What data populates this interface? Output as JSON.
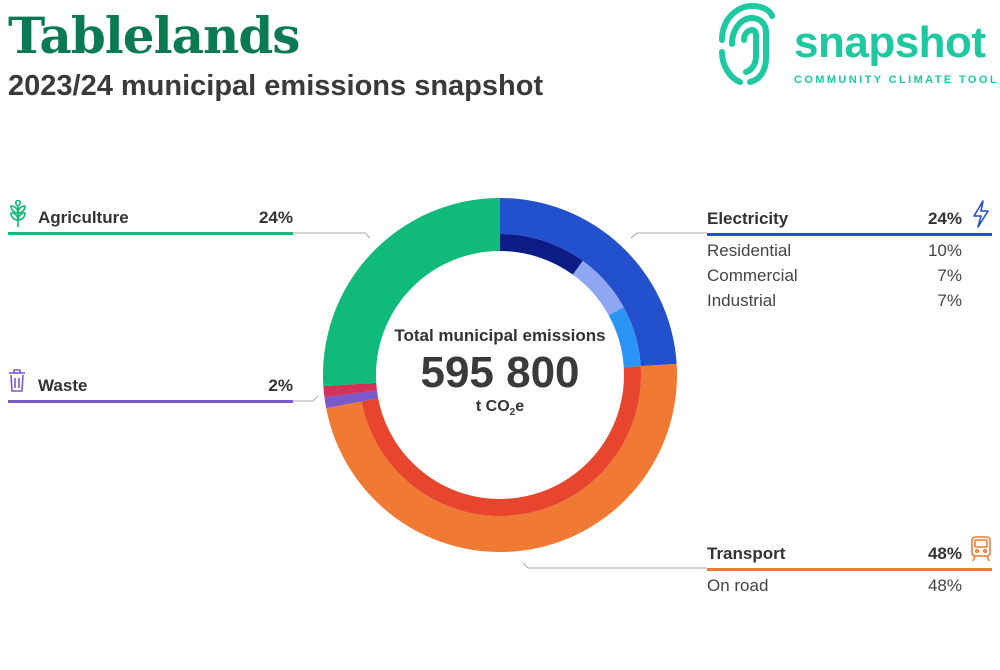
{
  "header": {
    "title": "Tablelands",
    "subtitle": "2023/24 municipal emissions snapshot"
  },
  "logo": {
    "wordmark": "snapshot",
    "tagline": "COMMUNITY CLIMATE TOOL"
  },
  "center": {
    "label": "Total municipal emissions",
    "value": "595 800",
    "unit_prefix": "t CO",
    "unit_sub": "2",
    "unit_suffix": "e"
  },
  "colors": {
    "agriculture": "#0fba7a",
    "waste": "#7a5acb",
    "waste_red": "#d5325a",
    "electricity": "#2350cc",
    "transport": "#f07a33",
    "transport_inner": "#e8452f",
    "residential": "#0b1c86",
    "commercial": "#8fa6f2",
    "industrial": "#2a95f7"
  },
  "categories": [
    {
      "key": "agriculture",
      "label": "Agriculture",
      "pct": "24%",
      "icon": "wheat-icon",
      "subs": []
    },
    {
      "key": "waste",
      "label": "Waste",
      "pct": "2%",
      "icon": "trash-icon",
      "subs": []
    },
    {
      "key": "electricity",
      "label": "Electricity",
      "pct": "24%",
      "icon": "lightning-icon",
      "subs": [
        {
          "label": "Residential",
          "pct": "10%"
        },
        {
          "label": "Commercial",
          "pct": "7%"
        },
        {
          "label": "Industrial",
          "pct": "7%"
        }
      ]
    },
    {
      "key": "transport",
      "label": "Transport",
      "pct": "48%",
      "icon": "train-icon",
      "subs": [
        {
          "label": "On road",
          "pct": "48%"
        }
      ]
    }
  ],
  "chart_data": {
    "type": "pie",
    "title": "2023/24 municipal emissions snapshot",
    "total": 595800,
    "unit": "t CO2e",
    "categories": [
      "Electricity",
      "Transport",
      "Waste",
      "Agriculture"
    ],
    "values": [
      24,
      48,
      2,
      24
    ],
    "subcategories": {
      "Electricity": {
        "Residential": 10,
        "Commercial": 7,
        "Industrial": 7
      },
      "Transport": {
        "On road": 48
      }
    }
  }
}
